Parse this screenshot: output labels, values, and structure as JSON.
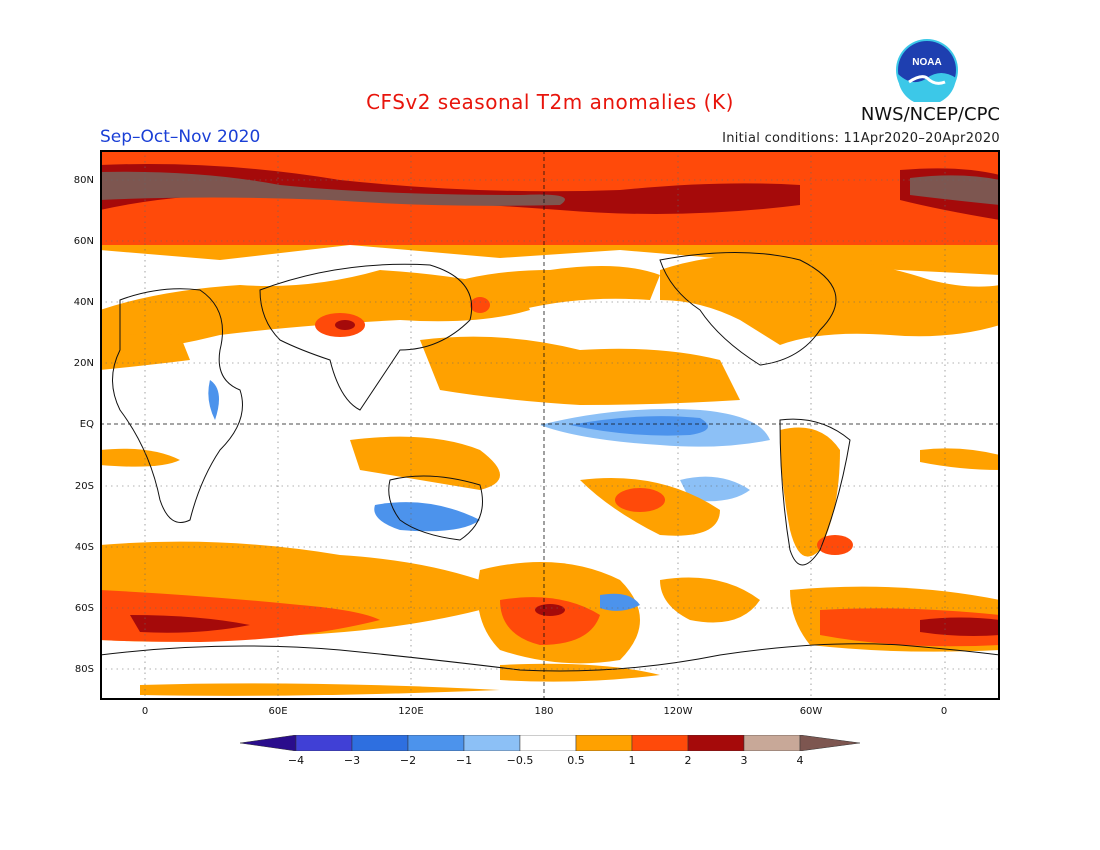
{
  "header": {
    "title": "CFSv2 seasonal T2m anomalies (K)",
    "season": "Sep–Oct–Nov 2020",
    "initial_conditions": "Initial conditions: 11Apr2020–20Apr2020",
    "agency": "NWS/NCEP/CPC",
    "logo_text": "NOAA"
  },
  "map": {
    "lat_labels": [
      "80N",
      "60N",
      "40N",
      "20N",
      "EQ",
      "20S",
      "40S",
      "60S",
      "80S"
    ],
    "lon_labels": [
      "0",
      "60E",
      "120E",
      "180",
      "120W",
      "60W",
      "0"
    ]
  },
  "colorbar": {
    "labels": [
      "−4",
      "−3",
      "−2",
      "−1",
      "−0.5",
      "0.5",
      "1",
      "2",
      "3",
      "4"
    ],
    "colors": [
      "#2a0d8c",
      "#4040d6",
      "#2e6fe0",
      "#4c93ec",
      "#8cc0f6",
      "#ffffff",
      "#ffa100",
      "#ff4a0a",
      "#a50a0a",
      "#c8a898",
      "#7d5650"
    ]
  },
  "colors": {
    "title": "#e8150c",
    "season": "#1a3fd6"
  }
}
